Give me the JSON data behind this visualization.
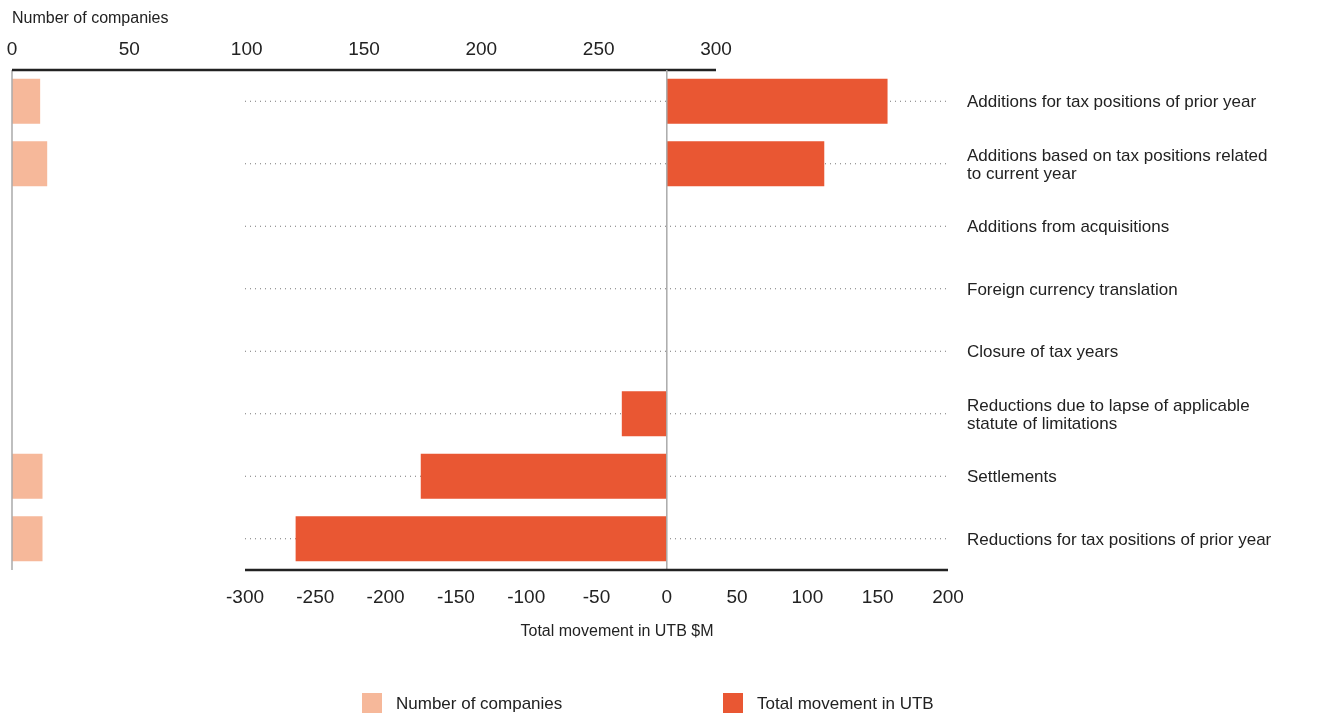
{
  "chart_data": [
    {
      "type": "bar",
      "orientation": "horizontal",
      "xlabel": "Number of companies",
      "tick_labels": "x",
      "categories": [
        null,
        null,
        null,
        null,
        null,
        null,
        null,
        null
      ],
      "series": [
        {
          "name": "Number of companies",
          "color": "#f6b89a",
          "values": [
            12,
            15,
            0,
            0,
            0,
            0,
            13,
            13
          ]
        }
      ],
      "xlim": [
        0,
        300
      ],
      "xticks": [
        0,
        50,
        100,
        150,
        200,
        250,
        300
      ],
      "legend": "bottom"
    },
    {
      "type": "bar",
      "orientation": "horizontal",
      "xlabel": "Total movement in UTB $M",
      "categories": [
        "Additions for tax positions of prior year",
        "Additions based on tax positions related to current year",
        "Additions from acquisitions",
        "Foreign currency translation",
        "Closure of tax years",
        "Reductions due to lapse of applicable statute of limitations",
        "Settlements",
        "Reductions for tax positions of prior year"
      ],
      "series": [
        {
          "name": "Total movement in UTB",
          "color": "#e95733",
          "values": [
            157,
            112,
            0,
            0,
            0,
            -32,
            -175,
            -264
          ]
        }
      ],
      "xlim": [
        -300,
        200
      ],
      "xticks": [
        -300,
        -250,
        -200,
        -150,
        -100,
        -50,
        0,
        50,
        100,
        150,
        200
      ],
      "grid": "y",
      "legend": "bottom"
    }
  ]
}
